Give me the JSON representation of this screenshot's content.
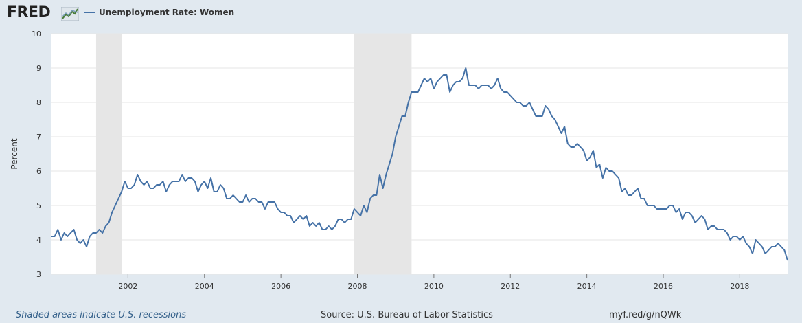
{
  "header": {
    "logo_text": "FRED",
    "legend_label": "Unemployment Rate: Women"
  },
  "footer": {
    "note": "Shaded areas indicate U.S. recessions",
    "source": "Source: U.S. Bureau of Labor Statistics",
    "short_url": "myf.red/g/nQWk"
  },
  "colors": {
    "line": "#4572a7",
    "recession_shade": "#e6e6e6",
    "grid": "#e6e6e6",
    "background": "#e1e9f0",
    "plot_background": "#ffffff"
  },
  "chart_data": {
    "type": "line",
    "title": "",
    "xlabel": "",
    "ylabel": "Percent",
    "ylim": [
      3,
      10
    ],
    "xlim": [
      "2000-01",
      "2019-04"
    ],
    "yticks": [
      "3",
      "4",
      "5",
      "6",
      "7",
      "8",
      "9",
      "10"
    ],
    "xticks": [
      "2002",
      "2004",
      "2006",
      "2008",
      "2010",
      "2012",
      "2014",
      "2016",
      "2018"
    ],
    "grid": true,
    "legend_position": "top-left",
    "recessions": [
      {
        "start": "2001-03",
        "end": "2001-11"
      },
      {
        "start": "2007-12",
        "end": "2009-06"
      }
    ],
    "series": [
      {
        "name": "Unemployment Rate: Women",
        "start": "2000-01",
        "frequency": "monthly",
        "values": [
          4.1,
          4.1,
          4.3,
          4.0,
          4.2,
          4.1,
          4.2,
          4.3,
          4.0,
          3.9,
          4.0,
          3.8,
          4.1,
          4.2,
          4.2,
          4.3,
          4.2,
          4.4,
          4.5,
          4.8,
          5.0,
          5.2,
          5.4,
          5.7,
          5.5,
          5.5,
          5.6,
          5.9,
          5.7,
          5.6,
          5.7,
          5.5,
          5.5,
          5.6,
          5.6,
          5.7,
          5.4,
          5.6,
          5.7,
          5.7,
          5.7,
          5.9,
          5.7,
          5.8,
          5.8,
          5.7,
          5.4,
          5.6,
          5.7,
          5.5,
          5.8,
          5.4,
          5.4,
          5.6,
          5.5,
          5.2,
          5.2,
          5.3,
          5.2,
          5.1,
          5.1,
          5.3,
          5.1,
          5.2,
          5.2,
          5.1,
          5.1,
          4.9,
          5.1,
          5.1,
          5.1,
          4.9,
          4.8,
          4.8,
          4.7,
          4.7,
          4.5,
          4.6,
          4.7,
          4.6,
          4.7,
          4.4,
          4.5,
          4.4,
          4.5,
          4.3,
          4.3,
          4.4,
          4.3,
          4.4,
          4.6,
          4.6,
          4.5,
          4.6,
          4.6,
          4.9,
          4.8,
          4.7,
          5.0,
          4.8,
          5.2,
          5.3,
          5.3,
          5.9,
          5.5,
          5.9,
          6.2,
          6.5,
          7.0,
          7.3,
          7.6,
          7.6,
          8.0,
          8.3,
          8.3,
          8.3,
          8.5,
          8.7,
          8.6,
          8.7,
          8.4,
          8.6,
          8.7,
          8.8,
          8.8,
          8.3,
          8.5,
          8.6,
          8.6,
          8.7,
          9.0,
          8.5,
          8.5,
          8.5,
          8.4,
          8.5,
          8.5,
          8.5,
          8.4,
          8.5,
          8.7,
          8.4,
          8.3,
          8.3,
          8.2,
          8.1,
          8.0,
          8.0,
          7.9,
          7.9,
          8.0,
          7.8,
          7.6,
          7.6,
          7.6,
          7.9,
          7.8,
          7.6,
          7.5,
          7.3,
          7.1,
          7.3,
          6.8,
          6.7,
          6.7,
          6.8,
          6.7,
          6.6,
          6.3,
          6.4,
          6.6,
          6.1,
          6.2,
          5.8,
          6.1,
          6.0,
          6.0,
          5.9,
          5.8,
          5.4,
          5.5,
          5.3,
          5.3,
          5.4,
          5.5,
          5.2,
          5.2,
          5.0,
          5.0,
          5.0,
          4.9,
          4.9,
          4.9,
          4.9,
          5.0,
          5.0,
          4.8,
          4.9,
          4.6,
          4.8,
          4.8,
          4.7,
          4.5,
          4.6,
          4.7,
          4.6,
          4.3,
          4.4,
          4.4,
          4.3,
          4.3,
          4.3,
          4.2,
          4.0,
          4.1,
          4.1,
          4.0,
          4.1,
          3.9,
          3.8,
          3.6,
          4.0,
          3.9,
          3.8,
          3.6,
          3.7,
          3.8,
          3.8,
          3.9,
          3.8,
          3.7,
          3.4
        ]
      }
    ]
  }
}
